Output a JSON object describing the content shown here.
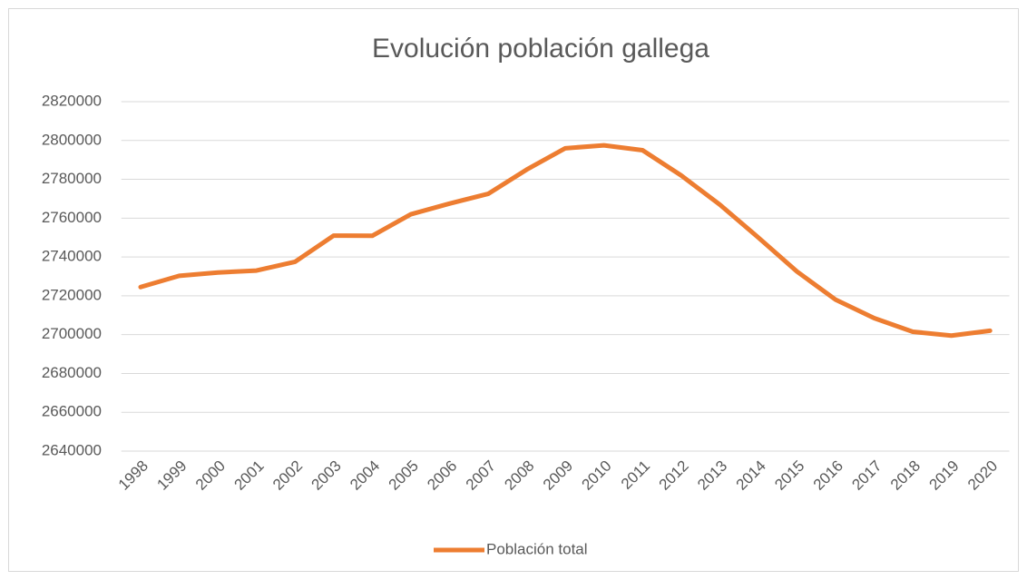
{
  "chart_data": {
    "type": "line",
    "title": "Evolución población gallega",
    "categories": [
      "1998",
      "1999",
      "2000",
      "2001",
      "2002",
      "2003",
      "2004",
      "2005",
      "2006",
      "2007",
      "2008",
      "2009",
      "2010",
      "2011",
      "2012",
      "2013",
      "2014",
      "2015",
      "2016",
      "2017",
      "2018",
      "2019",
      "2020"
    ],
    "series": [
      {
        "name": "Población total",
        "color": "#ed7d31",
        "values": [
          2724500,
          2730300,
          2732000,
          2733000,
          2737500,
          2751000,
          2750900,
          2762000,
          2767500,
          2772500,
          2785000,
          2796000,
          2797500,
          2795000,
          2782000,
          2767000,
          2750000,
          2732500,
          2718000,
          2708500,
          2701500,
          2699500,
          2702000
        ]
      }
    ],
    "ylim": [
      2640000,
      2820000
    ],
    "yticks": [
      2640000,
      2660000,
      2680000,
      2700000,
      2720000,
      2740000,
      2760000,
      2780000,
      2800000,
      2820000
    ],
    "grid": true,
    "legend": "bottom"
  }
}
